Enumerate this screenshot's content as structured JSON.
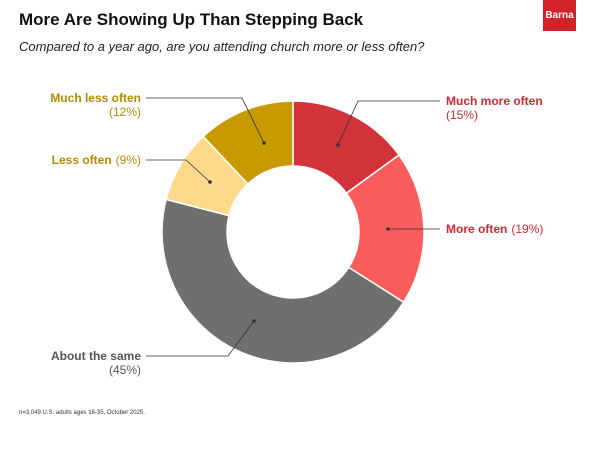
{
  "header": {
    "title": "More Are Showing Up Than Stepping Back",
    "subtitle": "Compared to a year ago, are you attending church more or less often?",
    "logo_text": "Barna"
  },
  "footnote": "n=3,049 U.S. adults ages 18-35, October 2025.",
  "colors": {
    "much_more": "#d2323a",
    "more": "#fb5c5c",
    "same": "#6f6f6f",
    "less": "#fdd98c",
    "much_less": "#c79a00",
    "red_text": "#cf2a33",
    "gold_text": "#b58a00",
    "gray_text": "#555555",
    "brand": "#d2232a"
  },
  "chart_data": {
    "type": "pie",
    "donut": true,
    "slices": [
      {
        "label": "Much more often",
        "value": 15,
        "pct_text": "(15%)",
        "color": "#d2323a",
        "text_color": "#cf2a33"
      },
      {
        "label": "More often",
        "value": 19,
        "pct_text": "(19%)",
        "color": "#fb5c5c",
        "text_color": "#cf2a33"
      },
      {
        "label": "About the same",
        "value": 45,
        "pct_text": "(45%)",
        "color": "#6f6f6f",
        "text_color": "#555555"
      },
      {
        "label": "Less often",
        "value": 9,
        "pct_text": "(9%)",
        "color": "#fdd98c",
        "text_color": "#b58a00"
      },
      {
        "label": "Much less often",
        "value": 12,
        "pct_text": "(12%)",
        "color": "#c79a00",
        "text_color": "#b58a00"
      }
    ]
  }
}
